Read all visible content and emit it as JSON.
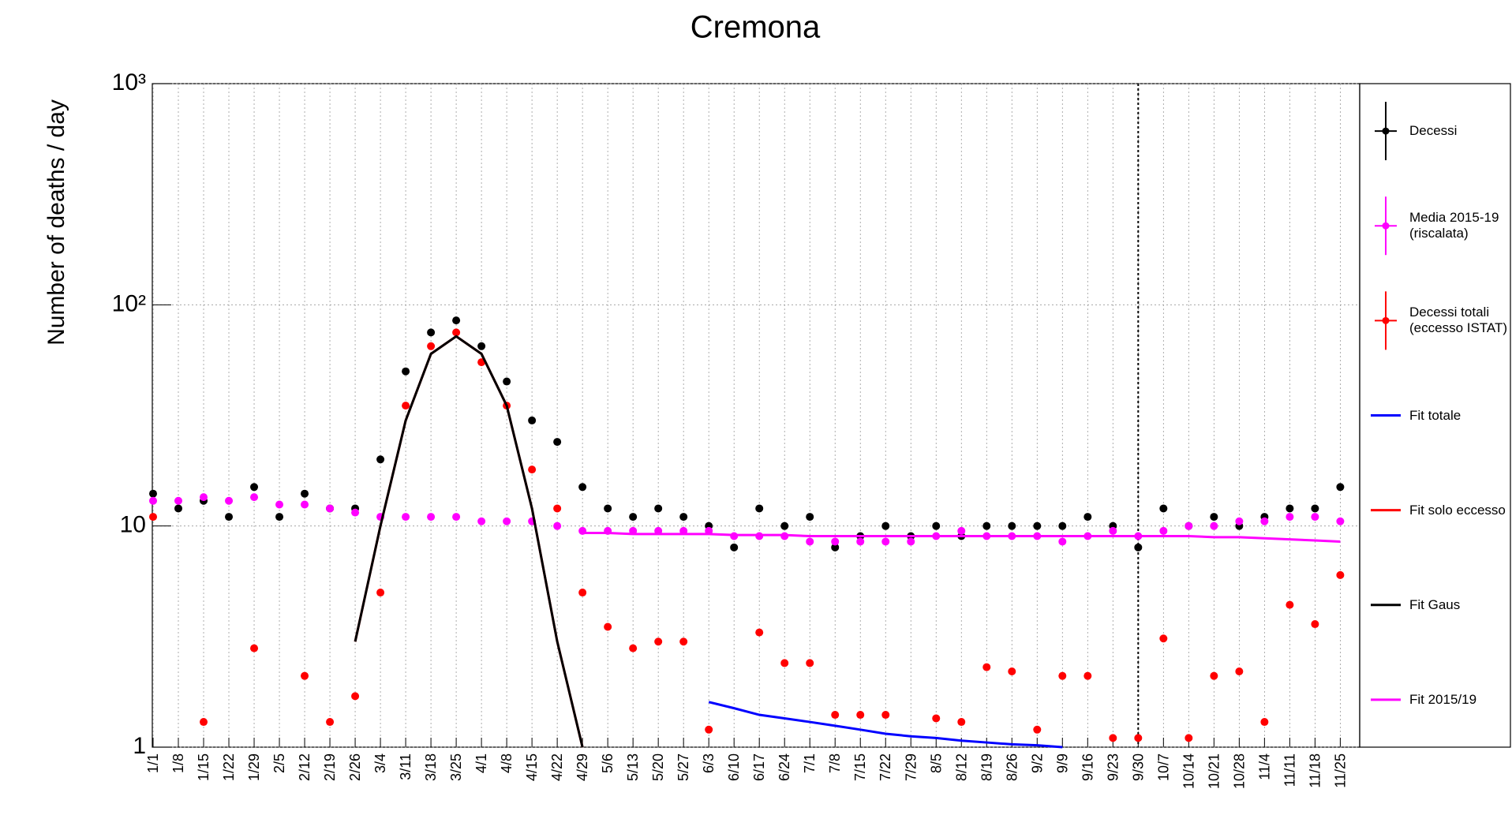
{
  "chart_data": {
    "type": "line",
    "title": "Cremona",
    "y_label": "Number of deaths / day",
    "categories": [
      "1/1",
      "1/8",
      "1/15",
      "1/22",
      "1/29",
      "2/5",
      "2/12",
      "2/19",
      "2/26",
      "3/4",
      "3/11",
      "3/18",
      "3/25",
      "4/1",
      "4/8",
      "4/15",
      "4/22",
      "4/29",
      "5/6",
      "5/13",
      "5/20",
      "5/27",
      "6/3",
      "6/10",
      "6/17",
      "6/24",
      "7/1",
      "7/8",
      "7/15",
      "7/22",
      "7/29",
      "8/5",
      "8/12",
      "8/19",
      "8/26",
      "9/2",
      "9/9",
      "9/16",
      "9/23",
      "9/30",
      "10/7",
      "10/14",
      "10/21",
      "10/28",
      "11/4",
      "11/11",
      "11/18",
      "11/25"
    ],
    "log_y": true,
    "grid": true,
    "legend": "right",
    "marker_line": "9/30",
    "ylim": [
      1,
      1000
    ],
    "yticks": [
      1,
      10,
      {
        "value": 100,
        "label": "10²"
      },
      {
        "value": 1000,
        "label": "10³"
      }
    ],
    "series": [
      {
        "name": "Decessi",
        "color": "#000000",
        "kind": "points",
        "values": [
          14,
          12,
          13,
          11,
          15,
          11,
          14,
          12,
          12,
          20,
          50,
          75,
          85,
          65,
          45,
          30,
          24,
          15,
          12,
          11,
          12,
          11,
          10,
          8,
          12,
          10,
          11,
          8,
          9,
          10,
          9,
          10,
          9,
          10,
          10,
          10,
          10,
          11,
          10,
          8,
          12,
          10,
          11,
          10,
          11,
          12,
          12,
          15
        ]
      },
      {
        "name": "Media 2015-19 (riscalata)",
        "color": "#ff00ff",
        "kind": "points",
        "values": [
          13,
          13,
          13.5,
          13,
          13.5,
          12.5,
          12.5,
          12,
          11.5,
          11,
          11,
          11,
          11,
          10.5,
          10.5,
          10.5,
          10,
          9.5,
          9.5,
          9.5,
          9.5,
          9.5,
          9.5,
          9,
          9,
          9,
          8.5,
          8.5,
          8.5,
          8.5,
          8.5,
          9,
          9.5,
          9,
          9,
          9,
          8.5,
          9,
          9.5,
          9,
          9.5,
          10,
          10,
          10.5,
          10.5,
          11,
          11,
          10.5
        ]
      },
      {
        "name": "Decessi totali (eccesso ISTAT)",
        "color": "#ff0000",
        "kind": "points",
        "values": [
          11,
          null,
          1.3,
          null,
          2.8,
          null,
          2.1,
          1.3,
          1.7,
          5,
          35,
          65,
          75,
          55,
          35,
          18,
          12,
          5,
          3.5,
          2.8,
          3,
          3,
          1.2,
          null,
          3.3,
          2.4,
          2.4,
          1.4,
          1.4,
          1.4,
          null,
          1.35,
          1.3,
          2.3,
          2.2,
          1.2,
          2.1,
          2.1,
          1.1,
          1.1,
          3.1,
          1.1,
          2.1,
          2.2,
          1.3,
          4.4,
          3.6,
          6
        ]
      },
      {
        "name": "Fit totale",
        "color": "#0000ff",
        "kind": "line",
        "values": [
          null,
          null,
          null,
          null,
          null,
          null,
          null,
          null,
          null,
          null,
          null,
          null,
          null,
          null,
          null,
          null,
          null,
          null,
          null,
          null,
          null,
          null,
          1.6,
          1.5,
          1.4,
          1.35,
          1.3,
          1.25,
          1.2,
          1.15,
          1.12,
          1.1,
          1.07,
          1.05,
          1.03,
          1.02,
          1,
          null,
          null,
          null,
          null,
          null,
          null,
          null,
          null,
          null,
          null,
          null
        ]
      },
      {
        "name": "Fit solo eccesso",
        "color": "#ff0000",
        "kind": "line",
        "values": [
          null,
          null,
          null,
          null,
          null,
          null,
          null,
          null,
          3,
          10,
          30,
          60,
          72,
          60,
          35,
          12,
          3,
          1,
          null,
          null,
          null,
          null,
          null,
          null,
          null,
          null,
          null,
          null,
          null,
          null,
          null,
          null,
          null,
          null,
          null,
          null,
          null,
          null,
          null,
          null,
          null,
          null,
          null,
          null,
          null,
          null,
          null,
          null
        ]
      },
      {
        "name": "Fit Gaus",
        "color": "#000000",
        "kind": "line",
        "values": [
          null,
          null,
          null,
          null,
          null,
          null,
          null,
          null,
          3,
          10,
          30,
          60,
          72,
          60,
          35,
          12,
          3,
          1,
          null,
          null,
          null,
          null,
          null,
          null,
          null,
          null,
          null,
          null,
          null,
          null,
          null,
          null,
          null,
          null,
          null,
          null,
          null,
          null,
          null,
          null,
          null,
          null,
          null,
          null,
          null,
          null,
          null,
          null
        ]
      },
      {
        "name": "Fit 2015/19",
        "color": "#ff00ff",
        "kind": "line",
        "values": [
          null,
          null,
          null,
          null,
          null,
          null,
          null,
          null,
          null,
          null,
          null,
          null,
          null,
          null,
          null,
          null,
          null,
          9.3,
          9.3,
          9.2,
          9.2,
          9.2,
          9.2,
          9.1,
          9.1,
          9.1,
          9,
          9,
          9,
          9,
          9,
          9,
          9,
          9,
          9,
          9,
          9,
          9,
          9,
          9,
          9,
          9,
          8.9,
          8.9,
          8.8,
          8.7,
          8.6,
          8.5
        ]
      }
    ]
  }
}
